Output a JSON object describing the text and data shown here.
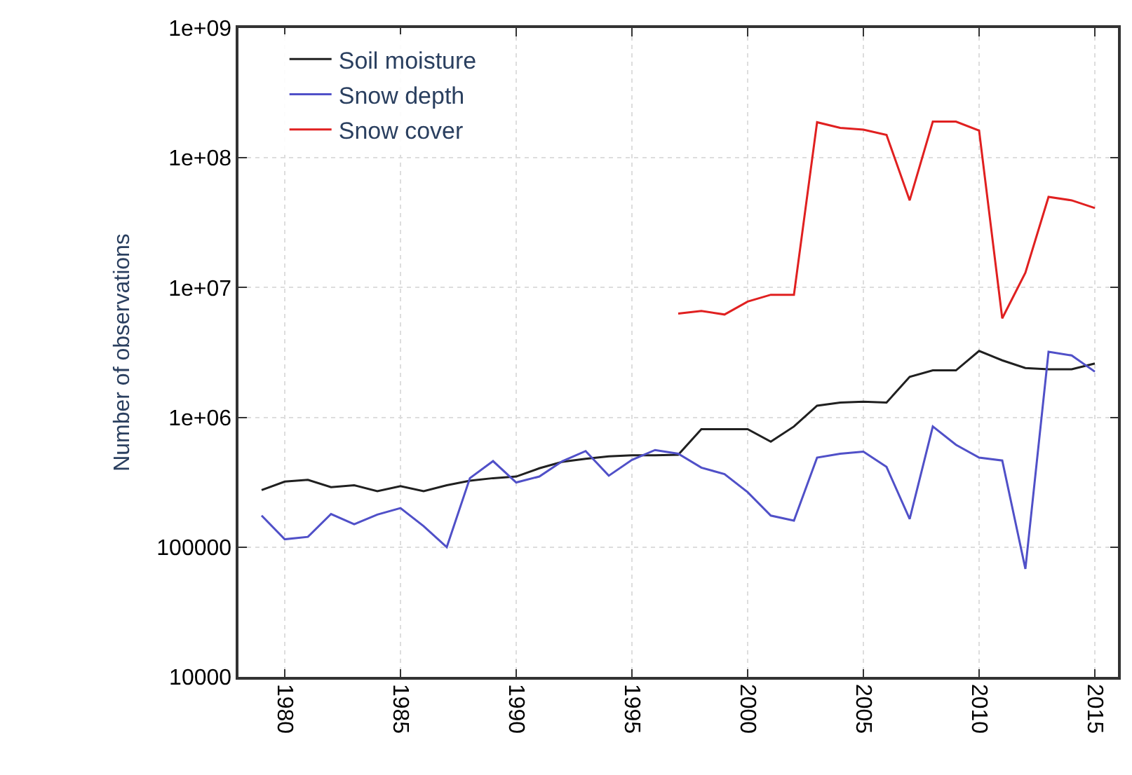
{
  "chart_data": {
    "type": "line",
    "ylabel": "Number of observations",
    "log": "y",
    "grid": true,
    "legend": "top left",
    "marker": "none",
    "line_style": "solid",
    "xlim": [
      1978,
      2016
    ],
    "xticks": [
      1980,
      1985,
      1990,
      1995,
      2000,
      2005,
      2010,
      2015
    ],
    "ylim": [
      10000,
      1000000000
    ],
    "yticks": [
      10000,
      100000,
      {
        "value": 1000000,
        "label": "1e+06"
      },
      {
        "value": 10000000,
        "label": "1e+07"
      },
      {
        "value": 100000000,
        "label": "1e+08"
      },
      {
        "value": 1000000000,
        "label": "1e+09"
      }
    ],
    "series": [
      {
        "name": "Soil moisture",
        "color": "#202020",
        "x": [
          1979,
          1980,
          1981,
          1982,
          1983,
          1984,
          1985,
          1986,
          1987,
          1988,
          1989,
          1990,
          1991,
          1992,
          1993,
          1994,
          1995,
          1996,
          1997,
          1998,
          1999,
          2000,
          2001,
          2002,
          2003,
          2004,
          2005,
          2006,
          2007,
          2008,
          2009,
          2010,
          2011,
          2012,
          2013,
          2014,
          2015
        ],
        "values": [
          275000,
          320000,
          330000,
          290000,
          300000,
          270000,
          295000,
          270000,
          300000,
          325000,
          340000,
          350000,
          405000,
          455000,
          480000,
          500000,
          510000,
          510000,
          515000,
          810000,
          810000,
          810000,
          650000,
          850000,
          1230000,
          1300000,
          1320000,
          1300000,
          2050000,
          2300000,
          2300000,
          3250000,
          2750000,
          2400000,
          2350000,
          2350000,
          2600000
        ]
      },
      {
        "name": "Snow depth",
        "color": "#5050c8",
        "x": [
          1979,
          1980,
          1981,
          1982,
          1983,
          1984,
          1985,
          1986,
          1987,
          1988,
          1989,
          1990,
          1991,
          1992,
          1993,
          1994,
          1995,
          1996,
          1997,
          1998,
          1999,
          2000,
          2001,
          2002,
          2003,
          2004,
          2005,
          2006,
          2007,
          2008,
          2009,
          2010,
          2011,
          2012,
          2013,
          2014,
          2015
        ],
        "values": [
          175000,
          115000,
          120000,
          180000,
          150000,
          178000,
          200000,
          145000,
          100000,
          340000,
          460000,
          315000,
          350000,
          460000,
          550000,
          355000,
          470000,
          560000,
          525000,
          410000,
          365000,
          265000,
          175000,
          160000,
          490000,
          525000,
          545000,
          415000,
          165000,
          850000,
          615000,
          490000,
          465000,
          68000,
          3200000,
          3000000,
          2250000
        ]
      },
      {
        "name": "Snow cover",
        "color": "#e02020",
        "x": [
          1997,
          1998,
          1999,
          2000,
          2001,
          2002,
          2003,
          2004,
          2005,
          2006,
          2007,
          2008,
          2009,
          2010,
          2011,
          2012,
          2013,
          2014,
          2015
        ],
        "values": [
          6300000,
          6600000,
          6200000,
          7800000,
          8800000,
          8800000,
          188000000,
          170000000,
          165000000,
          150000000,
          47000000,
          190000000,
          190000000,
          162000000,
          5800000,
          13000000,
          50000000,
          47000000,
          41000000
        ]
      }
    ]
  }
}
